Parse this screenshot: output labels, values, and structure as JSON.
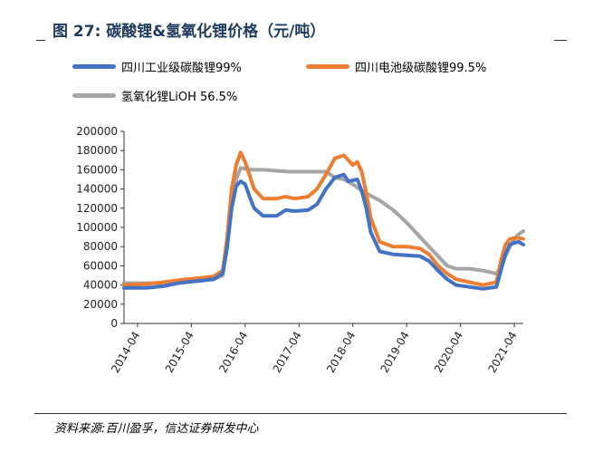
{
  "title": "图 27:  碳酸锂&氢氧化锂价格（元/吨）",
  "source": "资料来源:百川盈孚，信达证券研发中心",
  "colors": {
    "blue": "#4472c4",
    "orange": "#ed7d31",
    "gray": "#a5a5a5"
  },
  "chart_data": {
    "type": "line",
    "ylim": [
      0,
      200000
    ],
    "yticks": [
      0,
      20000,
      40000,
      60000,
      80000,
      100000,
      120000,
      140000,
      160000,
      180000,
      200000
    ],
    "x_range": [
      "2014-01",
      "2021-06"
    ],
    "x_tick_labels": [
      "2014-04",
      "2015-04",
      "2016-04",
      "2017-04",
      "2018-04",
      "2019-04",
      "2020-04",
      "2021-04"
    ],
    "legend_position": "top",
    "grid": false,
    "series": [
      {
        "name": "四川工业级碳酸锂99%",
        "color": "#4472c4",
        "points": [
          [
            "2014-01",
            37000
          ],
          [
            "2014-06",
            37000
          ],
          [
            "2014-10",
            39000
          ],
          [
            "2015-01",
            42000
          ],
          [
            "2015-05",
            44000
          ],
          [
            "2015-09",
            46000
          ],
          [
            "2015-11",
            52000
          ],
          [
            "2015-12",
            80000
          ],
          [
            "2016-01",
            120000
          ],
          [
            "2016-02",
            143000
          ],
          [
            "2016-03",
            148000
          ],
          [
            "2016-04",
            145000
          ],
          [
            "2016-05",
            132000
          ],
          [
            "2016-06",
            120000
          ],
          [
            "2016-08",
            112000
          ],
          [
            "2016-11",
            112000
          ],
          [
            "2017-01",
            118000
          ],
          [
            "2017-03",
            117000
          ],
          [
            "2017-06",
            118000
          ],
          [
            "2017-08",
            124000
          ],
          [
            "2017-10",
            140000
          ],
          [
            "2017-12",
            152000
          ],
          [
            "2018-02",
            155000
          ],
          [
            "2018-03",
            148000
          ],
          [
            "2018-05",
            150000
          ],
          [
            "2018-06",
            138000
          ],
          [
            "2018-07",
            120000
          ],
          [
            "2018-08",
            95000
          ],
          [
            "2018-10",
            75000
          ],
          [
            "2019-01",
            72000
          ],
          [
            "2019-04",
            71000
          ],
          [
            "2019-07",
            70000
          ],
          [
            "2019-09",
            65000
          ],
          [
            "2019-11",
            55000
          ],
          [
            "2020-01",
            46000
          ],
          [
            "2020-03",
            40000
          ],
          [
            "2020-06",
            38000
          ],
          [
            "2020-09",
            36000
          ],
          [
            "2020-12",
            38000
          ],
          [
            "2021-01",
            55000
          ],
          [
            "2021-02",
            72000
          ],
          [
            "2021-03",
            82000
          ],
          [
            "2021-04",
            84000
          ],
          [
            "2021-05",
            85000
          ],
          [
            "2021-06",
            82000
          ]
        ]
      },
      {
        "name": "四川电池级碳酸锂99.5%",
        "color": "#ed7d31",
        "points": [
          [
            "2014-01",
            40000
          ],
          [
            "2014-06",
            41000
          ],
          [
            "2014-10",
            43000
          ],
          [
            "2015-01",
            45000
          ],
          [
            "2015-05",
            47000
          ],
          [
            "2015-09",
            49000
          ],
          [
            "2015-11",
            55000
          ],
          [
            "2015-12",
            90000
          ],
          [
            "2016-01",
            140000
          ],
          [
            "2016-02",
            165000
          ],
          [
            "2016-03",
            178000
          ],
          [
            "2016-04",
            168000
          ],
          [
            "2016-06",
            140000
          ],
          [
            "2016-08",
            130000
          ],
          [
            "2016-11",
            130000
          ],
          [
            "2017-01",
            132000
          ],
          [
            "2017-03",
            130000
          ],
          [
            "2017-06",
            132000
          ],
          [
            "2017-08",
            140000
          ],
          [
            "2017-10",
            155000
          ],
          [
            "2017-12",
            172000
          ],
          [
            "2018-02",
            175000
          ],
          [
            "2018-04",
            165000
          ],
          [
            "2018-05",
            168000
          ],
          [
            "2018-06",
            158000
          ],
          [
            "2018-07",
            135000
          ],
          [
            "2018-08",
            110000
          ],
          [
            "2018-10",
            85000
          ],
          [
            "2019-01",
            80000
          ],
          [
            "2019-04",
            80000
          ],
          [
            "2019-07",
            78000
          ],
          [
            "2019-09",
            72000
          ],
          [
            "2019-11",
            60000
          ],
          [
            "2020-01",
            52000
          ],
          [
            "2020-03",
            46000
          ],
          [
            "2020-06",
            43000
          ],
          [
            "2020-09",
            40000
          ],
          [
            "2020-12",
            43000
          ],
          [
            "2021-01",
            65000
          ],
          [
            "2021-02",
            82000
          ],
          [
            "2021-03",
            88000
          ],
          [
            "2021-04",
            89000
          ],
          [
            "2021-05",
            89000
          ],
          [
            "2021-06",
            88000
          ]
        ]
      },
      {
        "name": "氢氧化锂LiOH 56.5%",
        "color": "#a5a5a5",
        "points": [
          [
            "2014-01",
            42000
          ],
          [
            "2014-06",
            42000
          ],
          [
            "2014-10",
            42000
          ],
          [
            "2015-01",
            43000
          ],
          [
            "2015-05",
            44000
          ],
          [
            "2015-09",
            46000
          ],
          [
            "2015-11",
            50000
          ],
          [
            "2015-12",
            80000
          ],
          [
            "2016-01",
            125000
          ],
          [
            "2016-02",
            150000
          ],
          [
            "2016-03",
            162000
          ],
          [
            "2016-05",
            160000
          ],
          [
            "2016-08",
            160000
          ],
          [
            "2016-11",
            159000
          ],
          [
            "2017-02",
            158000
          ],
          [
            "2017-06",
            158000
          ],
          [
            "2017-10",
            158000
          ],
          [
            "2017-12",
            152000
          ],
          [
            "2018-02",
            150000
          ],
          [
            "2018-04",
            145000
          ],
          [
            "2018-06",
            138000
          ],
          [
            "2018-08",
            133000
          ],
          [
            "2018-10",
            128000
          ],
          [
            "2019-01",
            118000
          ],
          [
            "2019-04",
            105000
          ],
          [
            "2019-07",
            90000
          ],
          [
            "2019-09",
            80000
          ],
          [
            "2019-11",
            70000
          ],
          [
            "2020-01",
            60000
          ],
          [
            "2020-03",
            57000
          ],
          [
            "2020-06",
            57000
          ],
          [
            "2020-09",
            55000
          ],
          [
            "2020-12",
            52000
          ],
          [
            "2021-01",
            58000
          ],
          [
            "2021-02",
            70000
          ],
          [
            "2021-03",
            80000
          ],
          [
            "2021-04",
            88000
          ],
          [
            "2021-05",
            93000
          ],
          [
            "2021-06",
            96000
          ]
        ]
      }
    ]
  }
}
